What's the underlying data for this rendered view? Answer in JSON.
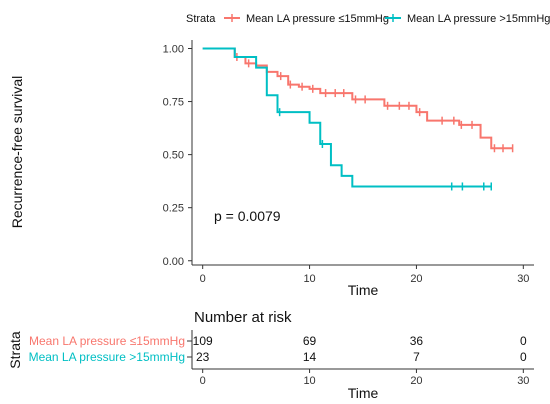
{
  "colors": {
    "group1": "#F8766D",
    "group2": "#00BFC4",
    "axis": "#333333"
  },
  "legend": {
    "title": "Strata",
    "items": [
      "Mean LA pressure ≤15mmHg",
      "Mean LA pressure >15mmHg"
    ]
  },
  "chart_data": {
    "type": "line",
    "subtype": "kaplan-meier step",
    "xlabel": "Time",
    "ylabel": "Recurrence-free survival",
    "xlim": [
      -1,
      31
    ],
    "ylim": [
      -0.02,
      1.04
    ],
    "x_ticks": [
      0,
      10,
      20,
      30
    ],
    "y_ticks": [
      0.0,
      0.25,
      0.5,
      0.75,
      1.0
    ],
    "y_tick_labels": [
      "0.00",
      "0.25",
      "0.50",
      "0.75",
      "1.00"
    ],
    "grid": false,
    "legend_position": "top",
    "annotation": "p = 0.0079",
    "series": [
      {
        "name": "Mean LA pressure ≤15mmHg",
        "steps": [
          [
            0,
            1.0
          ],
          [
            3,
            0.96
          ],
          [
            4,
            0.93
          ],
          [
            5,
            0.92
          ],
          [
            6,
            0.89
          ],
          [
            7,
            0.87
          ],
          [
            8,
            0.83
          ],
          [
            9,
            0.82
          ],
          [
            10,
            0.81
          ],
          [
            11,
            0.79
          ],
          [
            12,
            0.79
          ],
          [
            14,
            0.76
          ],
          [
            17,
            0.73
          ],
          [
            20,
            0.7
          ],
          [
            21,
            0.66
          ],
          [
            24,
            0.64
          ],
          [
            26,
            0.58
          ],
          [
            27,
            0.53
          ],
          [
            29,
            0.53
          ]
        ],
        "censored": [
          [
            3.2,
            0.96
          ],
          [
            4.3,
            0.93
          ],
          [
            7.3,
            0.87
          ],
          [
            8.2,
            0.83
          ],
          [
            9.3,
            0.82
          ],
          [
            10.3,
            0.81
          ],
          [
            11.5,
            0.79
          ],
          [
            12.4,
            0.79
          ],
          [
            13.2,
            0.79
          ],
          [
            14.3,
            0.76
          ],
          [
            15.2,
            0.76
          ],
          [
            17.3,
            0.73
          ],
          [
            18.4,
            0.73
          ],
          [
            19.3,
            0.73
          ],
          [
            20.3,
            0.7
          ],
          [
            22.4,
            0.66
          ],
          [
            23.5,
            0.66
          ],
          [
            24.2,
            0.64
          ],
          [
            25.2,
            0.64
          ],
          [
            27.3,
            0.53
          ],
          [
            28.1,
            0.53
          ],
          [
            29.0,
            0.53
          ]
        ]
      },
      {
        "name": "Mean LA pressure >15mmHg",
        "steps": [
          [
            0,
            1.0
          ],
          [
            3,
            0.96
          ],
          [
            5,
            0.91
          ],
          [
            6,
            0.78
          ],
          [
            7,
            0.7
          ],
          [
            10,
            0.65
          ],
          [
            11,
            0.55
          ],
          [
            12,
            0.45
          ],
          [
            13,
            0.4
          ],
          [
            14,
            0.35
          ],
          [
            27,
            0.35
          ]
        ],
        "censored": [
          [
            7.2,
            0.7
          ],
          [
            11.2,
            0.55
          ],
          [
            23.3,
            0.35
          ],
          [
            24.3,
            0.35
          ],
          [
            26.3,
            0.35
          ],
          [
            27.0,
            0.35
          ]
        ]
      }
    ]
  },
  "risk_table": {
    "title": "Number at risk",
    "ylabel": "Strata",
    "xlabel": "Time",
    "times": [
      0,
      10,
      20,
      30
    ],
    "rows": [
      {
        "name": "Mean LA pressure ≤15mmHg",
        "values": [
          "109",
          "69",
          "36",
          "0"
        ]
      },
      {
        "name": "Mean LA pressure >15mmHg",
        "values": [
          "23",
          "14",
          "7",
          "0"
        ]
      }
    ]
  }
}
